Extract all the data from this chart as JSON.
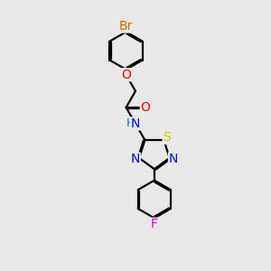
{
  "bg_color": "#e8e8e8",
  "atom_colors": {
    "Br": "#cc6600",
    "O": "#ff0000",
    "N": "#0000ff",
    "S": "#cccc00",
    "F": "#cc00cc",
    "C": "#000000",
    "H": "#008080"
  },
  "line_width": 1.6,
  "font_size": 9,
  "fig_size": [
    3.0,
    3.0
  ],
  "dpi": 100
}
